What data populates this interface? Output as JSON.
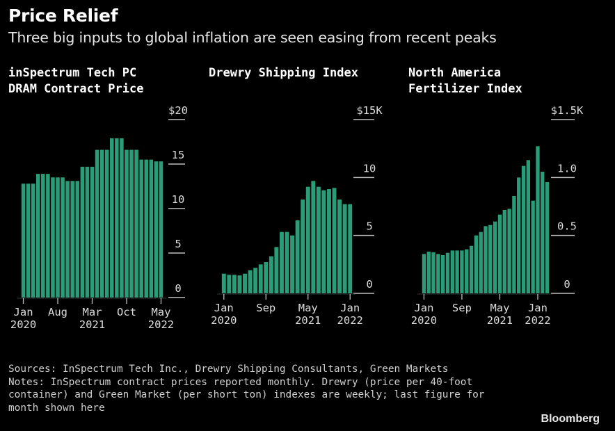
{
  "header": {
    "title": "Price Relief",
    "subtitle": "Three big inputs to global inflation are seen easing from recent peaks"
  },
  "footer": {
    "sources": "Sources: InSpectrum Tech Inc., Drewry Shipping Consultants, Green Markets",
    "notes_lines": [
      "Notes: InSpectrum contract prices reported monthly. Drewry (price per 40-foot",
      "container) and Green Market (per short ton) indexes are weekly; last figure for",
      "month shown here"
    ]
  },
  "brand": "Bloomberg",
  "colors": {
    "bar": "#2a9d78",
    "background": "#000000",
    "tick": "#bfbfbf"
  },
  "chart_data": [
    {
      "type": "bar",
      "title_lines": [
        "inSpectrum Tech PC",
        "DRAM Contract Price"
      ],
      "y_ticks": [
        "$20",
        "15",
        "10",
        "5",
        "0"
      ],
      "y_tick_values": [
        20,
        15,
        10,
        5,
        0
      ],
      "ylim": [
        0,
        20
      ],
      "x_ticks": [
        {
          "label": "Jan",
          "sub": "2020",
          "index": 0
        },
        {
          "label": "Aug",
          "sub": "",
          "index": 7
        },
        {
          "label": "Mar",
          "sub": "2021",
          "index": 14
        },
        {
          "label": "Oct",
          "sub": "",
          "index": 21
        },
        {
          "label": "May",
          "sub": "2022",
          "index": 28
        }
      ],
      "values": [
        12.8,
        12.8,
        12.8,
        13.9,
        13.9,
        13.9,
        13.5,
        13.5,
        13.5,
        13.1,
        13.1,
        13.1,
        14.7,
        14.7,
        14.7,
        16.6,
        16.6,
        16.6,
        17.9,
        17.9,
        17.9,
        16.6,
        16.6,
        16.6,
        15.5,
        15.5,
        15.5,
        15.3,
        15.3
      ]
    },
    {
      "type": "bar",
      "title_lines": [
        "Drewry Shipping Index"
      ],
      "y_ticks": [
        "$15K",
        "10",
        "5",
        "0"
      ],
      "y_tick_values": [
        15000,
        10000,
        5000,
        0
      ],
      "ylim": [
        0,
        15000
      ],
      "x_ticks": [
        {
          "label": "Jan",
          "sub": "2020",
          "index": 0
        },
        {
          "label": "Sep",
          "sub": "",
          "index": 8
        },
        {
          "label": "May",
          "sub": "2021",
          "index": 16
        },
        {
          "label": "Jan",
          "sub": "2022",
          "index": 24
        }
      ],
      "values": [
        1700,
        1600,
        1600,
        1550,
        1700,
        2000,
        2200,
        2500,
        2700,
        3200,
        4000,
        5300,
        5300,
        5000,
        6300,
        8100,
        9200,
        9700,
        9200,
        8900,
        9000,
        9100,
        8100,
        7700,
        7700
      ]
    },
    {
      "type": "bar",
      "title_lines": [
        "North America",
        "Fertilizer Index"
      ],
      "y_ticks": [
        "$1.5K",
        "1.0",
        "0.5",
        "0"
      ],
      "y_tick_values": [
        1500,
        1000,
        500,
        0
      ],
      "ylim": [
        0,
        1500
      ],
      "x_ticks": [
        {
          "label": "Jan",
          "sub": "2020",
          "index": 0
        },
        {
          "label": "Sep",
          "sub": "",
          "index": 8
        },
        {
          "label": "May",
          "sub": "2021",
          "index": 16
        },
        {
          "label": "Jan",
          "sub": "2022",
          "index": 24
        }
      ],
      "values": [
        340,
        360,
        355,
        340,
        330,
        350,
        370,
        370,
        370,
        380,
        410,
        500,
        530,
        580,
        590,
        620,
        680,
        720,
        730,
        840,
        1000,
        1100,
        1150,
        800,
        1270,
        1050,
        960
      ]
    }
  ]
}
